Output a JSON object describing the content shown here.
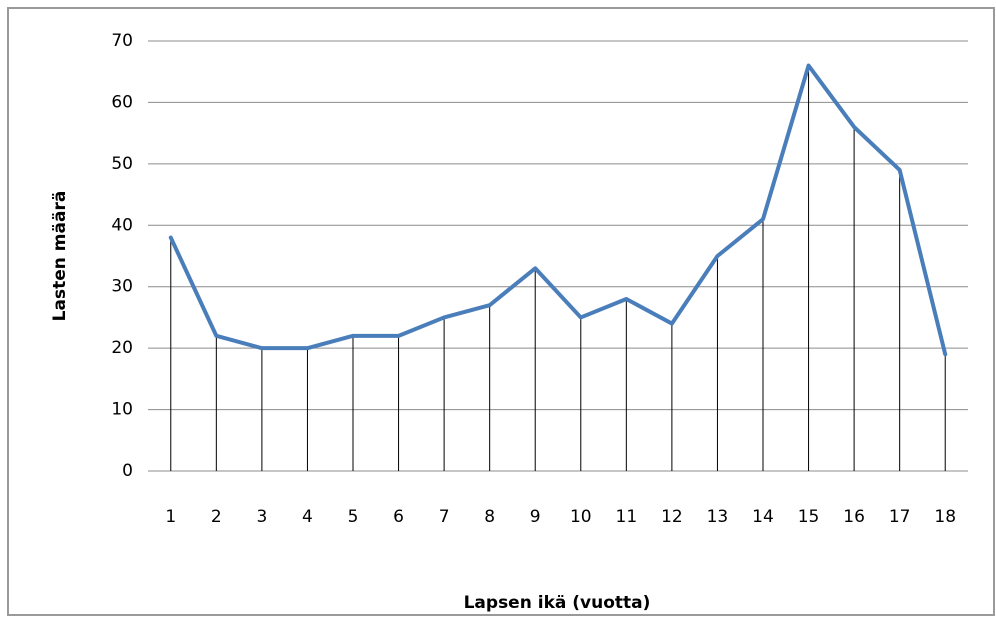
{
  "chart_data": {
    "type": "line",
    "xlabel": "Lapsen ikä (vuotta)",
    "ylabel": "Lasten määrä",
    "categories": [
      "1",
      "2",
      "3",
      "4",
      "5",
      "6",
      "7",
      "8",
      "9",
      "10",
      "11",
      "12",
      "13",
      "14",
      "15",
      "16",
      "17",
      "18"
    ],
    "series": [
      {
        "color": "#4a7ebb",
        "values": [
          38,
          22,
          20,
          20,
          22,
          22,
          25,
          27,
          33,
          25,
          28,
          24,
          35,
          41,
          66,
          56,
          49,
          19
        ]
      }
    ],
    "drop_lines": true,
    "ylim": [
      0,
      70
    ],
    "yticks": [
      0,
      10,
      20,
      30,
      40,
      50,
      60,
      70
    ],
    "grid": true
  }
}
